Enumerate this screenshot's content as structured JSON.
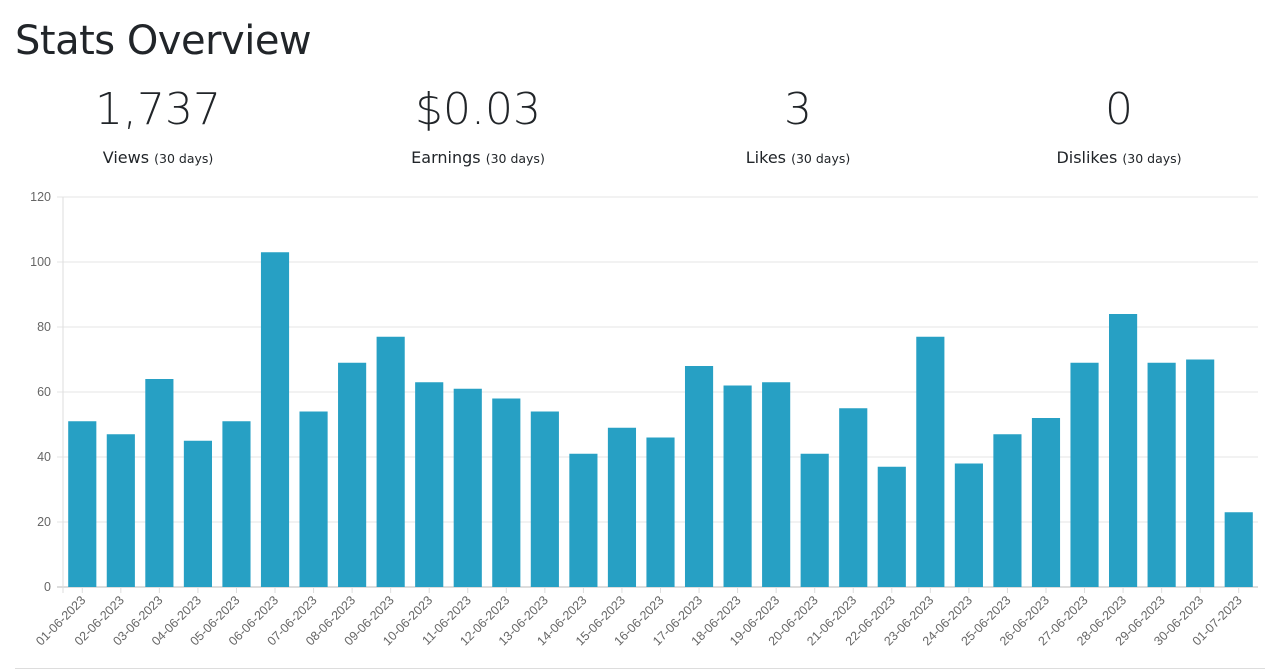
{
  "title": "Stats Overview",
  "stats": [
    {
      "value": "1,737",
      "label": "Views",
      "period": "(30 days)"
    },
    {
      "value": "$0.03",
      "label": "Earnings",
      "period": "(30 days)"
    },
    {
      "value": "3",
      "label": "Likes",
      "period": "(30 days)"
    },
    {
      "value": "0",
      "label": "Dislikes",
      "period": "(30 days)"
    }
  ],
  "colors": {
    "bar": "#27a0c4",
    "grid": "#e5e5e5"
  },
  "chart_data": {
    "type": "bar",
    "title": "",
    "xlabel": "",
    "ylabel": "",
    "ylim": [
      0,
      120
    ],
    "yticks": [
      0,
      20,
      40,
      60,
      80,
      100,
      120
    ],
    "grid": true,
    "categories": [
      "01-06-2023",
      "02-06-2023",
      "03-06-2023",
      "04-06-2023",
      "05-06-2023",
      "06-06-2023",
      "07-06-2023",
      "08-06-2023",
      "09-06-2023",
      "10-06-2023",
      "11-06-2023",
      "12-06-2023",
      "13-06-2023",
      "14-06-2023",
      "15-06-2023",
      "16-06-2023",
      "17-06-2023",
      "18-06-2023",
      "19-06-2023",
      "20-06-2023",
      "21-06-2023",
      "22-06-2023",
      "23-06-2023",
      "24-06-2023",
      "25-06-2023",
      "26-06-2023",
      "27-06-2023",
      "28-06-2023",
      "29-06-2023",
      "30-06-2023",
      "01-07-2023"
    ],
    "values": [
      51,
      47,
      64,
      45,
      51,
      103,
      54,
      69,
      77,
      63,
      61,
      58,
      54,
      41,
      49,
      46,
      68,
      62,
      63,
      41,
      55,
      37,
      77,
      38,
      47,
      52,
      69,
      84,
      69,
      70,
      23
    ]
  }
}
